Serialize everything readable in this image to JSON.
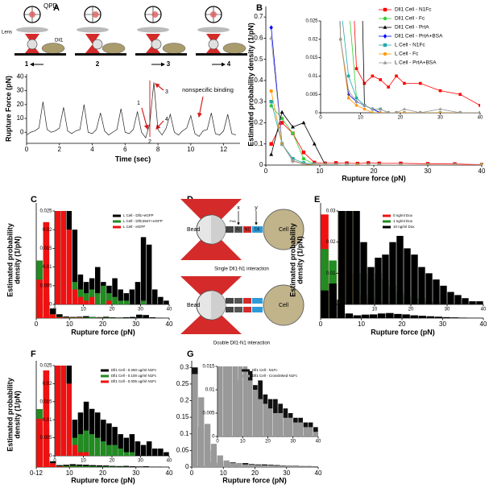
{
  "chart_data": [
    {
      "type": "line",
      "panel": "A",
      "xlabel": "Time (sec)",
      "ylabel": "Rupture Force (pN)",
      "xlim": [
        0,
        13
      ],
      "xticks": [
        0,
        2,
        4,
        6,
        8,
        10,
        12
      ],
      "ylim": [
        -8,
        42
      ],
      "yticks": [
        0,
        10,
        20,
        30,
        40
      ],
      "x": [
        0,
        0.25,
        0.5,
        0.75,
        1,
        1.25,
        1.5,
        1.75,
        2,
        2.25,
        2.5,
        2.75,
        3,
        3.25,
        3.5,
        3.75,
        4,
        4.25,
        4.5,
        4.75,
        5,
        5.25,
        5.5,
        5.75,
        6,
        6.25,
        6.5,
        6.75,
        7,
        7.25,
        7.5,
        7.75,
        8,
        8.25,
        8.5,
        8.75,
        9,
        9.25,
        9.5,
        9.75,
        10,
        10.25,
        10.5,
        10.75,
        11,
        11.25,
        11.5,
        11.75,
        12,
        12.25,
        12.5,
        12.75
      ],
      "series": [
        {
          "color": "#222222",
          "values": [
            -2,
            0,
            1,
            3,
            22,
            2,
            0,
            1,
            3,
            18,
            1,
            -1,
            1,
            2,
            20,
            0,
            -1,
            2,
            14,
            1,
            -2,
            0,
            2,
            17,
            0,
            -1,
            2,
            15,
            0,
            -4,
            6,
            36,
            2,
            -2,
            3,
            13,
            0,
            -2,
            1,
            3,
            12,
            -1,
            -3,
            1,
            2,
            14,
            -1,
            -2,
            1,
            13,
            -1,
            -2
          ]
        }
      ],
      "annotations": [
        "1",
        "2",
        "3",
        "4",
        "nonspecific binding"
      ],
      "schematic": {
        "detector": "QPD",
        "lens": "Lens",
        "ligand": "Dll1",
        "steps": [
          "1",
          "2",
          "3",
          "4"
        ]
      }
    },
    {
      "type": "line",
      "panel": "B",
      "xlabel": "Rupture force (pN)",
      "ylabel": "Estimated probability density (1/pN)",
      "xlim": [
        0,
        40
      ],
      "xticks": [
        0,
        10,
        20,
        30,
        40
      ],
      "ylim": [
        0,
        0.75
      ],
      "yticks": [
        0,
        0.1,
        0.2,
        0.3,
        0.4,
        0.5,
        0.6,
        0.7
      ],
      "x": [
        1,
        3,
        5,
        7,
        9,
        11,
        13,
        15,
        17,
        19,
        21,
        25,
        30,
        35,
        40
      ],
      "series": [
        {
          "name": "Dll1 Cell - N1Fc",
          "color": "#ff0000",
          "marker": "square",
          "values": [
            0.1,
            0.2,
            0.15,
            0.06,
            0.012,
            0.008,
            0.01,
            0.009,
            0.007,
            0.01,
            0.008,
            0.008,
            0.006,
            0.005,
            0.002
          ]
        },
        {
          "name": "Dll1 Cell - Fc",
          "color": "#33cc33",
          "marker": "circle",
          "values": [
            0.28,
            0.22,
            0.15,
            0.03,
            0.004,
            0.002,
            0.001,
            0,
            0,
            0,
            0,
            0,
            0,
            0,
            0
          ]
        },
        {
          "name": "Dll1 Cell - PrtA",
          "color": "#000000",
          "marker": "triangle",
          "values": [
            0.05,
            0.25,
            0.18,
            0.2,
            0.1,
            0.002,
            0.001,
            0,
            0,
            0,
            0,
            0,
            0,
            0,
            0
          ]
        },
        {
          "name": "Dll1 Cell - PrtA+BSA",
          "color": "#0000ff",
          "marker": "diamond",
          "values": [
            0.65,
            0.1,
            0.02,
            0.005,
            0.003,
            0.002,
            0.001,
            0,
            0,
            0,
            0,
            0,
            0,
            0,
            0
          ]
        },
        {
          "name": "L Cell - N1Fc",
          "color": "#22aaaa",
          "marker": "square",
          "values": [
            0.3,
            0.1,
            0.03,
            0.01,
            0.004,
            0.002,
            0.001,
            0.001,
            0,
            0,
            0,
            0,
            0,
            0,
            0
          ]
        },
        {
          "name": "L Cell - Fc",
          "color": "#ff9900",
          "marker": "circle",
          "values": [
            0.35,
            0.1,
            0.02,
            0.004,
            0.002,
            0.001,
            0,
            0,
            0,
            0,
            0,
            0,
            0,
            0,
            0
          ]
        },
        {
          "name": "L Cell - PrtA+BSA",
          "color": "#999999",
          "marker": "triangle",
          "values": [
            0.6,
            0.1,
            0.02,
            0.006,
            0.003,
            0.002,
            0.001,
            0.001,
            0,
            0,
            0.001,
            0,
            0.001,
            0,
            0
          ]
        }
      ],
      "inset": {
        "xlim": [
          0,
          40
        ],
        "xticks": [
          0,
          10,
          20,
          30,
          40
        ],
        "ylim": [
          0,
          0.025
        ],
        "yticks": [
          0,
          0.005,
          0.01,
          0.015,
          0.02,
          0.025
        ]
      }
    },
    {
      "type": "histogram",
      "panel": "C",
      "xlabel": "Rupture force (pN)",
      "ylabel": [
        "Estimated probability",
        "density (1/pN)"
      ],
      "xlim": [
        0,
        40
      ],
      "xticks": [
        0,
        10,
        20,
        30,
        40
      ],
      "ylim": [
        0,
        0.6
      ],
      "bins": [
        0,
        2,
        4,
        6,
        8,
        10,
        12,
        14,
        16,
        18,
        20,
        22,
        24,
        26,
        28,
        30,
        32,
        34,
        36,
        38,
        40
      ],
      "series": [
        {
          "name": "L Cell - Dll1+eGFP",
          "color": "#000000",
          "values": [
            0.08,
            0.12,
            0.05,
            0.02,
            0.008,
            0.006,
            0.007,
            0.01,
            0.006,
            0.005,
            0.007,
            0.004,
            0.003,
            0.004,
            0.006,
            0.018,
            0.016,
            0.004,
            0.002,
            0.001
          ]
        },
        {
          "name": "L Cell - DllC284Y+eGFP",
          "color": "#228b22",
          "values": [
            0.3,
            0.15,
            0.02,
            0.006,
            0.004,
            0.003,
            0.004,
            0.003,
            0.005,
            0.003,
            0.002,
            0.001,
            0.001,
            0,
            0,
            0.001,
            0,
            0,
            0,
            0
          ]
        },
        {
          "name": "L Cell - eGFP",
          "color": "#ee1111",
          "values": [
            0.2,
            0.5,
            0.02,
            0.004,
            0.002,
            0.001,
            0.002,
            0,
            0,
            0.001,
            0,
            0,
            0,
            0,
            0,
            0,
            0,
            0,
            0,
            0
          ]
        }
      ],
      "inset": {
        "xlim": [
          0,
          40
        ],
        "xticks": [
          0,
          10,
          20,
          30,
          40
        ],
        "ylim": [
          0,
          0.025
        ],
        "yticks": [
          0,
          0.005,
          0.01,
          0.015,
          0.02,
          0.025
        ]
      }
    },
    {
      "type": "histogram",
      "panel": "E",
      "xlabel": "Rupture force (pN)",
      "ylabel": [
        "Estimated probability",
        "density (1/pN)"
      ],
      "xlim": [
        0,
        40
      ],
      "xticks": [
        0,
        10,
        20,
        30,
        40
      ],
      "ylim": [
        0,
        0.5
      ],
      "bins": [
        0,
        2,
        4,
        6,
        8,
        10,
        12,
        14,
        16,
        18,
        20,
        22,
        24,
        26,
        28,
        30,
        32,
        34,
        36,
        38,
        40
      ],
      "series": [
        {
          "name": "0 ng/ml Dox",
          "color": "#ee1111",
          "values": [
            0.45,
            0.2,
            0.01,
            0.003,
            0.002,
            0.001,
            0.001,
            0,
            0,
            0,
            0,
            0,
            0,
            0,
            0,
            0,
            0,
            0,
            0,
            0
          ]
        },
        {
          "name": "1 ng/ml Dox",
          "color": "#228b22",
          "values": [
            0.3,
            0.25,
            0.05,
            0.01,
            0.008,
            0.01,
            0.008,
            0.006,
            0.004,
            0.003,
            0.002,
            0.002,
            0.001,
            0.001,
            0,
            0,
            0,
            0,
            0,
            0
          ]
        },
        {
          "name": "10 ng/ml Dox",
          "color": "#000000",
          "values": [
            0.12,
            0.15,
            0.08,
            0.02,
            0.012,
            0.015,
            0.016,
            0.02,
            0.022,
            0.018,
            0.016,
            0.012,
            0.01,
            0.008,
            0.006,
            0.004,
            0.003,
            0.002,
            0.001,
            0.001
          ]
        }
      ],
      "inset": {
        "xlim": [
          0,
          40
        ],
        "xticks": [
          0,
          10,
          20,
          30,
          40
        ],
        "ylim": [
          0,
          0.03
        ],
        "yticks": [
          0,
          0.01,
          0.02,
          0.03
        ]
      }
    },
    {
      "type": "histogram",
      "panel": "F",
      "xlabel": "Rupture force (pN)",
      "ylabel": [
        "Estimated probability",
        "density (1/pN)"
      ],
      "xlim": [
        0,
        40
      ],
      "xticks": [
        {
          "value": 0,
          "label": "0-12"
        },
        10,
        20,
        30,
        40
      ],
      "ylim": [
        0,
        0.55
      ],
      "bins": [
        0,
        2,
        4,
        6,
        8,
        10,
        12,
        14,
        16,
        18,
        20,
        22,
        24,
        26,
        28,
        30,
        32,
        34,
        36,
        38,
        40
      ],
      "series": [
        {
          "name": "Dll1 Cell - 0.250 ug/ml N1Fc",
          "color": "#000000",
          "values": [
            0.2,
            0.15,
            0.03,
            0.01,
            0.012,
            0.015,
            0.013,
            0.012,
            0.01,
            0.009,
            0.008,
            0.006,
            0.005,
            0.006,
            0.004,
            0.003,
            0.004,
            0.002,
            0.002,
            0.001
          ]
        },
        {
          "name": "Dll1 Cell - 0.100 ug/ml N1Fc",
          "color": "#228b22",
          "values": [
            0.3,
            0.2,
            0.02,
            0.005,
            0.006,
            0.007,
            0.006,
            0.005,
            0.004,
            0.003,
            0.003,
            0.002,
            0.001,
            0.001,
            0,
            0,
            0,
            0,
            0,
            0
          ]
        },
        {
          "name": "Dll1 Cell - 0.005 ug/ml N1Fc",
          "color": "#ee1111",
          "values": [
            0.25,
            0.5,
            0.02,
            0.003,
            0.001,
            0.001,
            0,
            0,
            0,
            0,
            0,
            0,
            0,
            0,
            0,
            0,
            0,
            0,
            0,
            0
          ]
        }
      ],
      "inset": {
        "xlim": [
          0,
          40
        ],
        "xticks": [
          0,
          10,
          20,
          30,
          40
        ],
        "ylim": [
          0,
          0.025
        ],
        "yticks": [
          0,
          0.005,
          0.01,
          0.015,
          0.02,
          0.025
        ]
      }
    },
    {
      "type": "histogram",
      "panel": "G",
      "xlabel": "Rupture force (pN)",
      "xlim": [
        0,
        40
      ],
      "xticks": [
        0,
        10,
        20,
        30,
        40
      ],
      "ylim": [
        0,
        0.32
      ],
      "yticks": [
        0,
        0.05,
        0.1,
        0.15,
        0.2,
        0.25,
        0.3
      ],
      "bins": [
        0,
        2,
        4,
        6,
        8,
        10,
        12,
        14,
        16,
        18,
        20,
        22,
        24,
        26,
        28,
        30,
        32,
        34,
        36,
        38,
        40
      ],
      "series": [
        {
          "name": "Dll1 Cell - N1Fc",
          "color": "#111111",
          "values": [
            0.3,
            0.12,
            0.05,
            0.015,
            0.012,
            0.013,
            0.014,
            0.011,
            0.012,
            0.009,
            0.008,
            0.008,
            0.007,
            0.006,
            0.005,
            0.004,
            0.004,
            0.003,
            0.003,
            0.002
          ]
        },
        {
          "name": "Dll1 Cell - Crosslinked N1Fc",
          "color": "#999999",
          "values": [
            0.28,
            0.21,
            0.13,
            0.07,
            0.035,
            0.02,
            0.012,
            0.01,
            0.008,
            0.007,
            0.006,
            0.005,
            0.005,
            0.004,
            0.004,
            0.003,
            0.003,
            0.002,
            0.002,
            0.001
          ]
        }
      ],
      "inset": {
        "xlim": [
          0,
          40
        ],
        "xticks": [
          0,
          10,
          20,
          30,
          40
        ],
        "ylim": [
          0,
          0.015
        ],
        "yticks": [
          0,
          0.005,
          0.01,
          0.015
        ]
      }
    }
  ],
  "diagram": {
    "panel": "D",
    "bead": "Bead",
    "cell": "Cell",
    "x": "x",
    "y": "y",
    "prta": "PrtA",
    "fc": "Fc",
    "n1": "N1",
    "dll": "Dll",
    "captions": [
      "Single Dll1-N1 interaction",
      "Double Dll1-N1 interaction"
    ]
  }
}
